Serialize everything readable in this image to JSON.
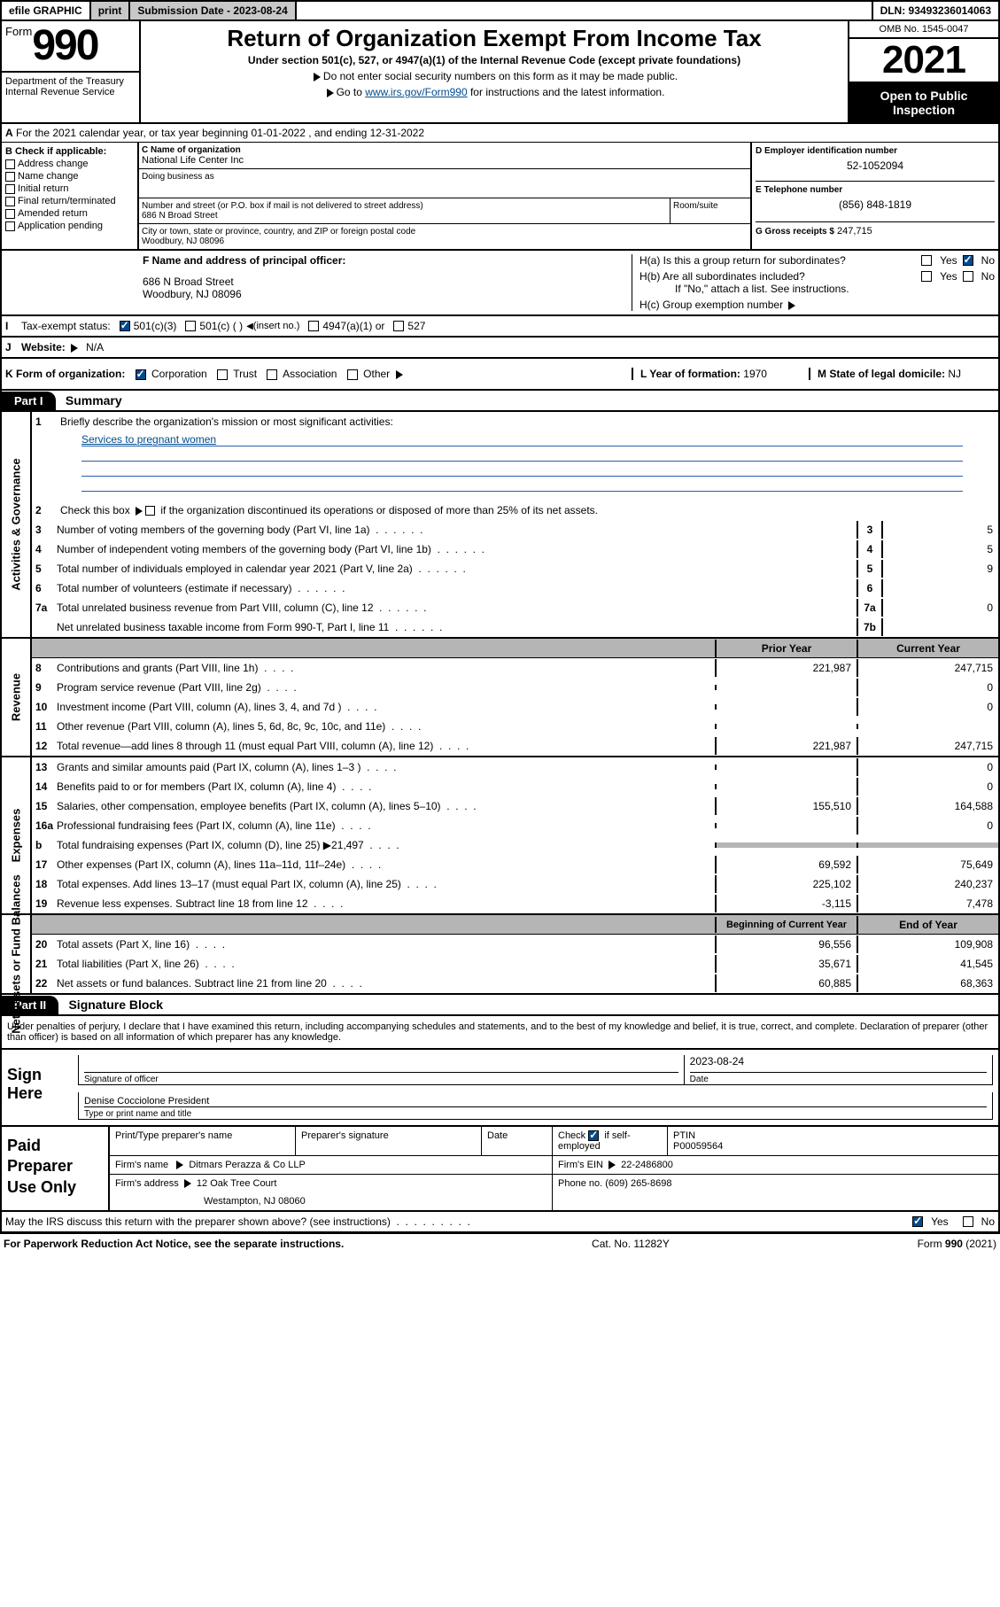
{
  "colors": {
    "link": "#004b8d",
    "accent": "#2a5db0",
    "gray": "#b5b5b5",
    "black": "#000000",
    "white": "#ffffff",
    "btn_gray": "#c8c8c8"
  },
  "topbar": {
    "efile": "efile GRAPHIC",
    "print": "print",
    "sub_label": "Submission Date - 2023-08-24",
    "dln": "DLN: 93493236014063"
  },
  "header": {
    "form_word": "Form",
    "form_no": "990",
    "title": "Return of Organization Exempt From Income Tax",
    "sub1": "Under section 501(c), 527, or 4947(a)(1) of the Internal Revenue Code (except private foundations)",
    "sub2": "Do not enter social security numbers on this form as it may be made public.",
    "sub3_pre": "Go to ",
    "sub3_link": "www.irs.gov/Form990",
    "sub3_post": " for instructions and the latest information.",
    "dept": "Department of the Treasury\nInternal Revenue Service",
    "omb": "OMB No. 1545-0047",
    "year": "2021",
    "open": "Open to Public Inspection"
  },
  "line_a": {
    "text": "For the 2021 calendar year, or tax year beginning 01-01-2022   , and ending 12-31-2022",
    "prefix": "A"
  },
  "b": {
    "title": "B Check if applicable:",
    "items": [
      "Address change",
      "Name change",
      "Initial return",
      "Final return/terminated",
      "Amended return",
      "Application pending"
    ]
  },
  "c": {
    "lbl": "C Name of organization",
    "name": "National Life Center Inc",
    "dba_lbl": "Doing business as",
    "street_lbl": "Number and street (or P.O. box if mail is not delivered to street address)",
    "room_lbl": "Room/suite",
    "street": "686 N Broad Street",
    "city_lbl": "City or town, state or province, country, and ZIP or foreign postal code",
    "city": "Woodbury, NJ  08096"
  },
  "d": {
    "lbl": "D Employer identification number",
    "val": "52-1052094"
  },
  "e": {
    "lbl": "E Telephone number",
    "val": "(856) 848-1819"
  },
  "g": {
    "lbl": "G Gross receipts $",
    "val": "247,715"
  },
  "f": {
    "lbl": "F Name and address of principal officer:",
    "line1": "686 N Broad Street",
    "line2": "Woodbury, NJ  08096"
  },
  "h": {
    "a": "H(a)  Is this a group return for subordinates?",
    "b": "H(b)  Are all subordinates included?",
    "b_note": "If \"No,\" attach a list. See instructions.",
    "c": "H(c)  Group exemption number",
    "yes": "Yes",
    "no": "No"
  },
  "i": {
    "lbl": "Tax-exempt status:",
    "o1": "501(c)(3)",
    "o2": "501(c) (   )",
    "o2b": "(insert no.)",
    "o3": "4947(a)(1) or",
    "o4": "527"
  },
  "j": {
    "lbl": "Website:",
    "val": "N/A"
  },
  "k": {
    "lbl": "K Form of organization:",
    "o1": "Corporation",
    "o2": "Trust",
    "o3": "Association",
    "o4": "Other"
  },
  "l": {
    "lbl": "L Year of formation:",
    "val": "1970"
  },
  "m": {
    "lbl": "M State of legal domicile:",
    "val": "NJ"
  },
  "parts": {
    "p1": "Part I",
    "p1t": "Summary",
    "p2": "Part II",
    "p2t": "Signature Block"
  },
  "vlabels": {
    "g1": "Activities & Governance",
    "g2": "Revenue",
    "g3": "Expenses",
    "g4": "Net Assets or Fund Balances"
  },
  "summary": {
    "l1": "Briefly describe the organization's mission or most significant activities:",
    "l1v": "Services to pregnant women",
    "l2": "Check this box",
    "l2b": "if the organization discontinued its operations or disposed of more than 25% of its net assets.",
    "l3": "Number of voting members of the governing body (Part VI, line 1a)",
    "l4": "Number of independent voting members of the governing body (Part VI, line 1b)",
    "l5": "Total number of individuals employed in calendar year 2021 (Part V, line 2a)",
    "l6": "Total number of volunteers (estimate if necessary)",
    "l7a": "Total unrelated business revenue from Part VIII, column (C), line 12",
    "l7b": "Net unrelated business taxable income from Form 990-T, Part I, line 11",
    "v3": "5",
    "v4": "5",
    "v5": "9",
    "v6": "",
    "v7a": "0",
    "v7b": ""
  },
  "cols": {
    "prior": "Prior Year",
    "current": "Current Year",
    "boy": "Beginning of Current Year",
    "eoy": "End of Year"
  },
  "rev": [
    {
      "n": "8",
      "t": "Contributions and grants (Part VIII, line 1h)",
      "p": "221,987",
      "c": "247,715"
    },
    {
      "n": "9",
      "t": "Program service revenue (Part VIII, line 2g)",
      "p": "",
      "c": "0"
    },
    {
      "n": "10",
      "t": "Investment income (Part VIII, column (A), lines 3, 4, and 7d )",
      "p": "",
      "c": "0"
    },
    {
      "n": "11",
      "t": "Other revenue (Part VIII, column (A), lines 5, 6d, 8c, 9c, 10c, and 11e)",
      "p": "",
      "c": ""
    },
    {
      "n": "12",
      "t": "Total revenue—add lines 8 through 11 (must equal Part VIII, column (A), line 12)",
      "p": "221,987",
      "c": "247,715"
    }
  ],
  "exp": [
    {
      "n": "13",
      "t": "Grants and similar amounts paid (Part IX, column (A), lines 1–3 )",
      "p": "",
      "c": "0"
    },
    {
      "n": "14",
      "t": "Benefits paid to or for members (Part IX, column (A), line 4)",
      "p": "",
      "c": "0"
    },
    {
      "n": "15",
      "t": "Salaries, other compensation, employee benefits (Part IX, column (A), lines 5–10)",
      "p": "155,510",
      "c": "164,588"
    },
    {
      "n": "16a",
      "t": "Professional fundraising fees (Part IX, column (A), line 11e)",
      "p": "",
      "c": "0"
    },
    {
      "n": "b",
      "t": "Total fundraising expenses (Part IX, column (D), line 25) ▶21,497",
      "p": "GRAY",
      "c": "GRAY"
    },
    {
      "n": "17",
      "t": "Other expenses (Part IX, column (A), lines 11a–11d, 11f–24e)",
      "p": "69,592",
      "c": "75,649"
    },
    {
      "n": "18",
      "t": "Total expenses. Add lines 13–17 (must equal Part IX, column (A), line 25)",
      "p": "225,102",
      "c": "240,237"
    },
    {
      "n": "19",
      "t": "Revenue less expenses. Subtract line 18 from line 12",
      "p": "-3,115",
      "c": "7,478"
    }
  ],
  "net": [
    {
      "n": "20",
      "t": "Total assets (Part X, line 16)",
      "p": "96,556",
      "c": "109,908"
    },
    {
      "n": "21",
      "t": "Total liabilities (Part X, line 26)",
      "p": "35,671",
      "c": "41,545"
    },
    {
      "n": "22",
      "t": "Net assets or fund balances. Subtract line 21 from line 20",
      "p": "60,885",
      "c": "68,363"
    }
  ],
  "sig": {
    "decl": "Under penalties of perjury, I declare that I have examined this return, including accompanying schedules and statements, and to the best of my knowledge and belief, it is true, correct, and complete. Declaration of preparer (other than officer) is based on all information of which preparer has any knowledge.",
    "sign_here": "Sign Here",
    "sig_officer": "Signature of officer",
    "date_lbl": "Date",
    "date": "2023-08-24",
    "name": "Denise Cocciolone President",
    "name_lbl": "Type or print name and title"
  },
  "prep": {
    "title": "Paid Preparer Use Only",
    "h1": "Print/Type preparer's name",
    "h2": "Preparer's signature",
    "h3": "Date",
    "h4": "Check",
    "h4b": "if self-employed",
    "h5": "PTIN",
    "ptin": "P00059564",
    "firm_lbl": "Firm's name",
    "firm": "Ditmars Perazza & Co LLP",
    "ein_lbl": "Firm's EIN",
    "ein": "22-2486800",
    "addr_lbl": "Firm's address",
    "addr1": "12 Oak Tree Court",
    "addr2": "Westampton, NJ  08060",
    "phone_lbl": "Phone no.",
    "phone": "(609) 265-8698"
  },
  "foot": {
    "q": "May the IRS discuss this return with the preparer shown above? (see instructions)",
    "paper": "For Paperwork Reduction Act Notice, see the separate instructions.",
    "cat": "Cat. No. 11282Y",
    "form": "Form 990 (2021)",
    "yes": "Yes",
    "no": "No"
  }
}
